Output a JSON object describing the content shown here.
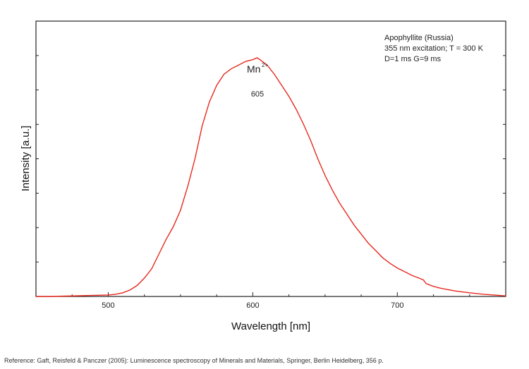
{
  "chart_data": {
    "type": "line",
    "xlabel": "Wavelength [nm]",
    "ylabel": "Intensity [a.u.]",
    "xlim": [
      450,
      775
    ],
    "ylim": [
      0,
      1.5
    ],
    "x_ticks": [
      500,
      600,
      700
    ],
    "y_ticks_labeled": false,
    "grid": false,
    "line_color": "#e8281e",
    "annotation_lines": [
      "Apophyllite (Russia)",
      "355 nm excitation; T = 300 K",
      "D=1 ms G=9 ms"
    ],
    "peak_label": {
      "ion": "Mn",
      "charge": "2+",
      "wavelength": "605",
      "x": 603
    },
    "series": [
      {
        "x": [
          450,
          460,
          470,
          480,
          490,
          500,
          505,
          510,
          515,
          520,
          525,
          530,
          535,
          540,
          545,
          550,
          555,
          560,
          565,
          570,
          575,
          580,
          585,
          590,
          595,
          600,
          603,
          605,
          610,
          615,
          620,
          625,
          630,
          635,
          640,
          645,
          650,
          655,
          660,
          665,
          670,
          675,
          680,
          685,
          690,
          695,
          700,
          705,
          710,
          715,
          718,
          720,
          725,
          730,
          740,
          750,
          760,
          770,
          775
        ],
        "y": [
          0.0,
          0.0,
          0.002,
          0.004,
          0.006,
          0.008,
          0.012,
          0.02,
          0.035,
          0.06,
          0.1,
          0.15,
          0.23,
          0.31,
          0.38,
          0.47,
          0.6,
          0.75,
          0.93,
          1.06,
          1.15,
          1.21,
          1.24,
          1.26,
          1.28,
          1.29,
          1.3,
          1.29,
          1.26,
          1.21,
          1.15,
          1.09,
          1.02,
          0.94,
          0.85,
          0.75,
          0.66,
          0.58,
          0.51,
          0.45,
          0.39,
          0.34,
          0.29,
          0.25,
          0.21,
          0.18,
          0.155,
          0.135,
          0.115,
          0.1,
          0.09,
          0.07,
          0.055,
          0.045,
          0.03,
          0.02,
          0.012,
          0.006,
          0.003
        ]
      }
    ]
  },
  "reference": "Reference: Gaft, Reisfeld & Panczer (2005): Luminescence spectroscopy of Minerals and Materials, Springer, Berlin Heidelberg, 356 p."
}
